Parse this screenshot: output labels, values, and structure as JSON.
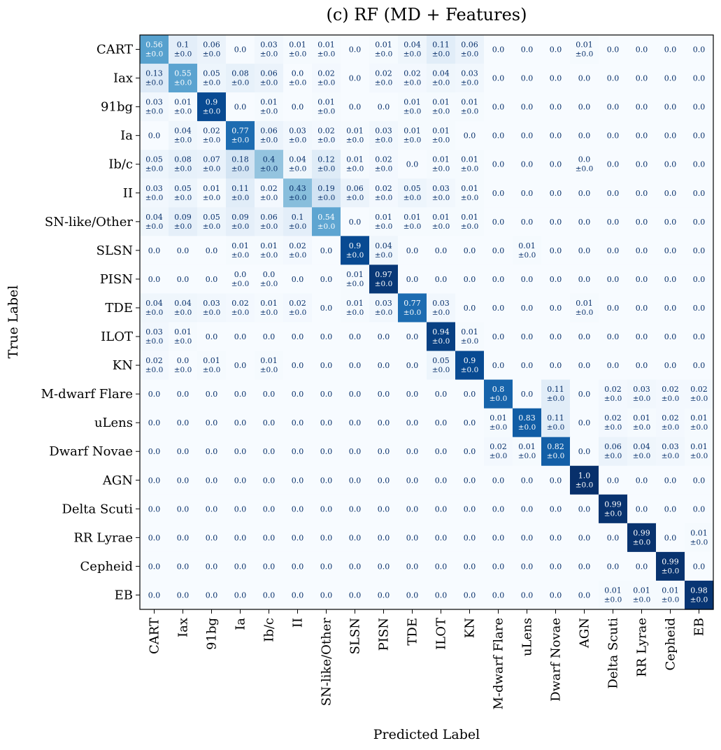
{
  "chart_data": {
    "type": "heatmap",
    "title": "(c) RF (MD + Features)",
    "xlabel": "Predicted Label",
    "ylabel": "True Label",
    "labels": [
      "CART",
      "Iax",
      "91bg",
      "Ia",
      "Ib/c",
      "II",
      "SN-like/Other",
      "SLSN",
      "PISN",
      "TDE",
      "ILOT",
      "KN",
      "M-dwarf Flare",
      "uLens",
      "Dwarf Novae",
      "AGN",
      "Delta Scuti",
      "RR Lyrae",
      "Cepheid",
      "EB"
    ],
    "std_text": "±0.0",
    "colormap": [
      "#f7fbff",
      "#deebf7",
      "#c6dbef",
      "#9ecae1",
      "#6baed6",
      "#4292c6",
      "#2171b5",
      "#08519c",
      "#08306b"
    ],
    "values": [
      [
        0.56,
        0.1,
        0.06,
        0.0,
        0.03,
        0.01,
        0.01,
        0.0,
        0.01,
        0.04,
        0.11,
        0.06,
        0.0,
        0.0,
        0.0,
        0.01,
        0.0,
        0.0,
        0.0,
        0.0
      ],
      [
        0.13,
        0.55,
        0.05,
        0.08,
        0.06,
        0.0,
        0.02,
        0.0,
        0.02,
        0.02,
        0.04,
        0.03,
        0.0,
        0.0,
        0.0,
        0.0,
        0.0,
        0.0,
        0.0,
        0.0
      ],
      [
        0.03,
        0.01,
        0.9,
        0.0,
        0.01,
        0.0,
        0.01,
        0.0,
        0.0,
        0.01,
        0.01,
        0.01,
        0.0,
        0.0,
        0.0,
        0.0,
        0.0,
        0.0,
        0.0,
        0.0
      ],
      [
        0.0,
        0.04,
        0.02,
        0.77,
        0.06,
        0.03,
        0.02,
        0.01,
        0.03,
        0.01,
        0.01,
        0.0,
        0.0,
        0.0,
        0.0,
        0.0,
        0.0,
        0.0,
        0.0,
        0.0
      ],
      [
        0.05,
        0.08,
        0.07,
        0.18,
        0.4,
        0.04,
        0.12,
        0.01,
        0.02,
        0.0,
        0.01,
        0.01,
        0.0,
        0.0,
        0.0,
        0.0,
        0.0,
        0.0,
        0.0,
        0.0
      ],
      [
        0.03,
        0.05,
        0.01,
        0.11,
        0.02,
        0.43,
        0.19,
        0.06,
        0.02,
        0.05,
        0.03,
        0.01,
        0.0,
        0.0,
        0.0,
        0.0,
        0.0,
        0.0,
        0.0,
        0.0
      ],
      [
        0.04,
        0.09,
        0.05,
        0.09,
        0.06,
        0.1,
        0.54,
        0.0,
        0.01,
        0.01,
        0.01,
        0.01,
        0.0,
        0.0,
        0.0,
        0.0,
        0.0,
        0.0,
        0.0,
        0.0
      ],
      [
        0.0,
        0.0,
        0.0,
        0.01,
        0.01,
        0.02,
        0.0,
        0.9,
        0.04,
        0.0,
        0.0,
        0.0,
        0.0,
        0.01,
        0.0,
        0.0,
        0.0,
        0.0,
        0.0,
        0.0
      ],
      [
        0.0,
        0.0,
        0.0,
        0.0,
        0.0,
        0.0,
        0.0,
        0.01,
        0.97,
        0.0,
        0.0,
        0.0,
        0.0,
        0.0,
        0.0,
        0.0,
        0.0,
        0.0,
        0.0,
        0.0
      ],
      [
        0.04,
        0.04,
        0.03,
        0.02,
        0.01,
        0.02,
        0.0,
        0.01,
        0.03,
        0.77,
        0.03,
        0.0,
        0.0,
        0.0,
        0.0,
        0.01,
        0.0,
        0.0,
        0.0,
        0.0
      ],
      [
        0.03,
        0.01,
        0.0,
        0.0,
        0.0,
        0.0,
        0.0,
        0.0,
        0.0,
        0.0,
        0.94,
        0.01,
        0.0,
        0.0,
        0.0,
        0.0,
        0.0,
        0.0,
        0.0,
        0.0
      ],
      [
        0.02,
        0.0,
        0.01,
        0.0,
        0.01,
        0.0,
        0.0,
        0.0,
        0.0,
        0.0,
        0.05,
        0.9,
        0.0,
        0.0,
        0.0,
        0.0,
        0.0,
        0.0,
        0.0,
        0.0
      ],
      [
        0.0,
        0.0,
        0.0,
        0.0,
        0.0,
        0.0,
        0.0,
        0.0,
        0.0,
        0.0,
        0.0,
        0.0,
        0.8,
        0.0,
        0.11,
        0.0,
        0.02,
        0.03,
        0.02,
        0.02
      ],
      [
        0.0,
        0.0,
        0.0,
        0.0,
        0.0,
        0.0,
        0.0,
        0.0,
        0.0,
        0.0,
        0.0,
        0.0,
        0.01,
        0.83,
        0.11,
        0.0,
        0.02,
        0.01,
        0.02,
        0.01
      ],
      [
        0.0,
        0.0,
        0.0,
        0.0,
        0.0,
        0.0,
        0.0,
        0.0,
        0.0,
        0.0,
        0.0,
        0.0,
        0.02,
        0.01,
        0.82,
        0.0,
        0.06,
        0.04,
        0.03,
        0.01
      ],
      [
        0.0,
        0.0,
        0.0,
        0.0,
        0.0,
        0.0,
        0.0,
        0.0,
        0.0,
        0.0,
        0.0,
        0.0,
        0.0,
        0.0,
        0.0,
        1.0,
        0.0,
        0.0,
        0.0,
        0.0
      ],
      [
        0.0,
        0.0,
        0.0,
        0.0,
        0.0,
        0.0,
        0.0,
        0.0,
        0.0,
        0.0,
        0.0,
        0.0,
        0.0,
        0.0,
        0.0,
        0.0,
        0.99,
        0.0,
        0.0,
        0.0
      ],
      [
        0.0,
        0.0,
        0.0,
        0.0,
        0.0,
        0.0,
        0.0,
        0.0,
        0.0,
        0.0,
        0.0,
        0.0,
        0.0,
        0.0,
        0.0,
        0.0,
        0.0,
        0.99,
        0.0,
        0.01
      ],
      [
        0.0,
        0.0,
        0.0,
        0.0,
        0.0,
        0.0,
        0.0,
        0.0,
        0.0,
        0.0,
        0.0,
        0.0,
        0.0,
        0.0,
        0.0,
        0.0,
        0.0,
        0.0,
        0.99,
        0.0
      ],
      [
        0.0,
        0.0,
        0.0,
        0.0,
        0.0,
        0.0,
        0.0,
        0.0,
        0.0,
        0.0,
        0.0,
        0.0,
        0.0,
        0.0,
        0.0,
        0.0,
        0.01,
        0.01,
        0.01,
        0.98
      ]
    ],
    "std_shown": [
      [
        1,
        1,
        1,
        0,
        1,
        1,
        1,
        0,
        1,
        1,
        1,
        1,
        0,
        0,
        0,
        1,
        0,
        0,
        0,
        0
      ],
      [
        1,
        1,
        1,
        1,
        1,
        1,
        1,
        0,
        1,
        1,
        1,
        1,
        0,
        0,
        0,
        0,
        0,
        0,
        0,
        0
      ],
      [
        1,
        1,
        1,
        0,
        1,
        0,
        1,
        0,
        0,
        1,
        1,
        1,
        0,
        0,
        0,
        0,
        0,
        0,
        0,
        0
      ],
      [
        0,
        1,
        1,
        1,
        1,
        1,
        1,
        1,
        1,
        1,
        1,
        0,
        0,
        0,
        0,
        0,
        0,
        0,
        0,
        0
      ],
      [
        1,
        1,
        1,
        1,
        1,
        1,
        1,
        1,
        1,
        0,
        1,
        1,
        0,
        0,
        0,
        1,
        0,
        0,
        0,
        0
      ],
      [
        1,
        1,
        1,
        1,
        1,
        1,
        1,
        1,
        1,
        1,
        1,
        1,
        0,
        0,
        0,
        0,
        0,
        0,
        0,
        0
      ],
      [
        1,
        1,
        1,
        1,
        1,
        1,
        1,
        0,
        1,
        1,
        1,
        1,
        0,
        0,
        0,
        0,
        0,
        0,
        0,
        0
      ],
      [
        0,
        0,
        0,
        1,
        1,
        1,
        0,
        1,
        1,
        0,
        0,
        0,
        0,
        1,
        0,
        0,
        0,
        0,
        0,
        0
      ],
      [
        0,
        0,
        0,
        1,
        1,
        0,
        0,
        1,
        1,
        0,
        0,
        0,
        0,
        0,
        0,
        0,
        0,
        0,
        0,
        0
      ],
      [
        1,
        1,
        1,
        1,
        1,
        1,
        0,
        1,
        1,
        1,
        1,
        0,
        0,
        0,
        0,
        1,
        0,
        0,
        0,
        0
      ],
      [
        1,
        1,
        0,
        0,
        0,
        0,
        0,
        0,
        0,
        0,
        1,
        1,
        0,
        0,
        0,
        0,
        0,
        0,
        0,
        0
      ],
      [
        1,
        1,
        1,
        0,
        1,
        0,
        0,
        0,
        0,
        0,
        1,
        1,
        0,
        0,
        0,
        0,
        0,
        0,
        0,
        0
      ],
      [
        0,
        0,
        0,
        0,
        0,
        0,
        0,
        0,
        0,
        0,
        0,
        0,
        1,
        0,
        1,
        0,
        1,
        1,
        1,
        1
      ],
      [
        0,
        0,
        0,
        0,
        0,
        0,
        0,
        0,
        0,
        0,
        0,
        0,
        1,
        1,
        1,
        0,
        1,
        1,
        1,
        1
      ],
      [
        0,
        0,
        0,
        0,
        0,
        0,
        0,
        0,
        0,
        0,
        0,
        0,
        1,
        1,
        1,
        0,
        1,
        1,
        1,
        1
      ],
      [
        0,
        0,
        0,
        0,
        0,
        0,
        0,
        0,
        0,
        0,
        0,
        0,
        0,
        0,
        0,
        1,
        0,
        0,
        0,
        0
      ],
      [
        0,
        0,
        0,
        0,
        0,
        0,
        0,
        0,
        0,
        0,
        0,
        0,
        0,
        0,
        0,
        0,
        1,
        0,
        0,
        0
      ],
      [
        0,
        0,
        0,
        0,
        0,
        0,
        0,
        0,
        0,
        0,
        0,
        0,
        0,
        0,
        0,
        0,
        0,
        1,
        0,
        1
      ],
      [
        0,
        0,
        0,
        0,
        0,
        0,
        0,
        0,
        0,
        0,
        0,
        0,
        0,
        0,
        0,
        0,
        0,
        0,
        1,
        0
      ],
      [
        0,
        0,
        0,
        0,
        0,
        0,
        0,
        0,
        0,
        0,
        0,
        0,
        0,
        0,
        0,
        0,
        1,
        1,
        1,
        1
      ]
    ]
  }
}
